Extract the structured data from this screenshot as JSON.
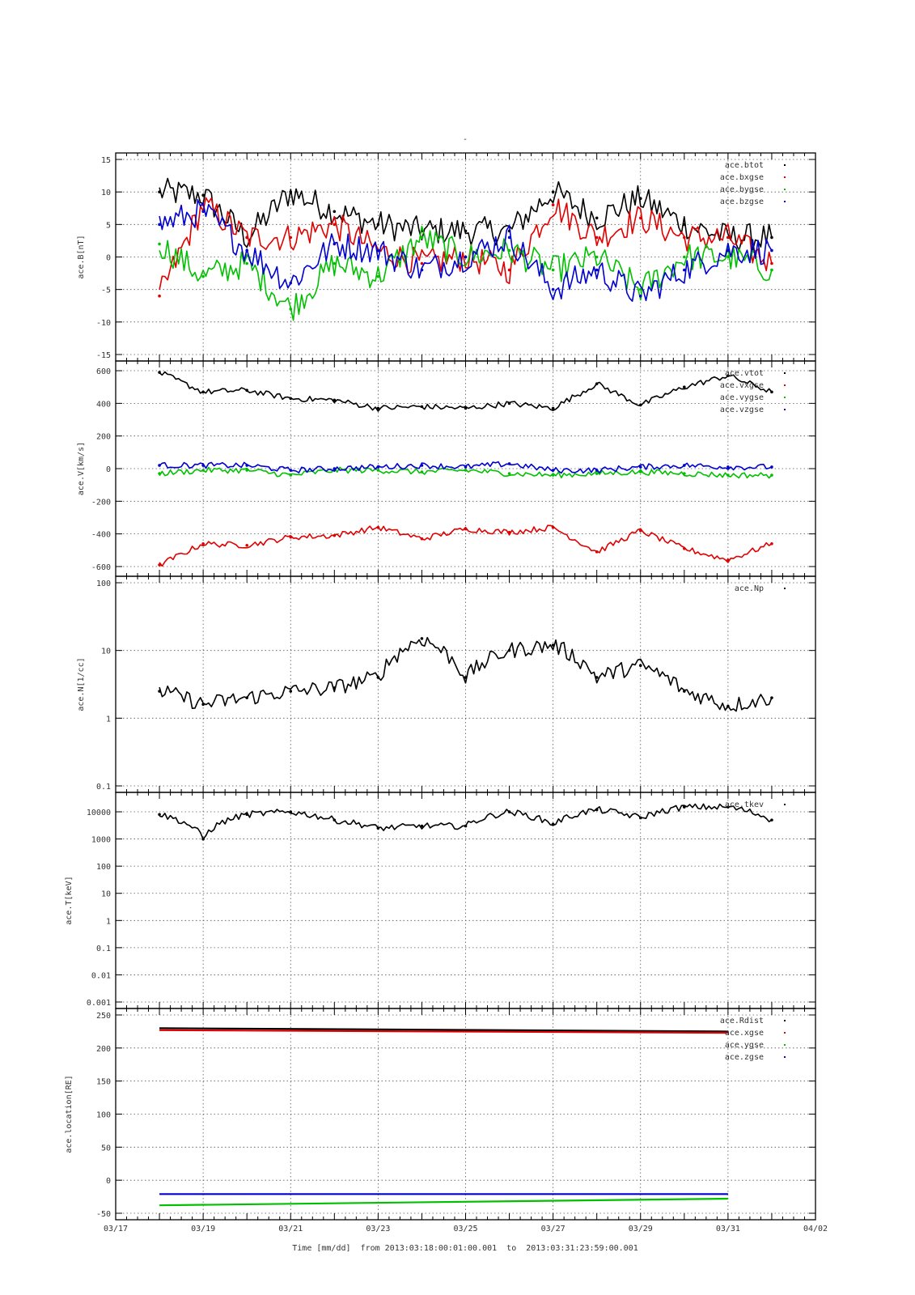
{
  "page": {
    "top_marker": "-",
    "time_axis": {
      "tick_labels": [
        "03/17",
        "03/19",
        "03/21",
        "03/23",
        "03/25",
        "03/27",
        "03/29",
        "03/31",
        "04/02"
      ],
      "title": "Time [mm/dd]  from 2013:03:18:00:01:00.001  to  2013:03:31:23:59:00.001",
      "start": "2013-03-17",
      "end": "2013-04-02",
      "data_start": "2013-03-18T00:01",
      "data_end": "2013-03-31T23:59"
    }
  },
  "colors": {
    "black": "#000000",
    "red": "#e00000",
    "green": "#00c000",
    "blue": "#0000d0"
  },
  "chart_data": [
    {
      "type": "scatter",
      "ylabel": "ace.B[nT]",
      "ylim": [
        -15,
        15
      ],
      "y_ticks": [
        15,
        10,
        5,
        0,
        -5,
        -10,
        -15
      ],
      "grid": true,
      "legend_position": "top-right",
      "x": [
        "03/18",
        "03/19",
        "03/20",
        "03/21",
        "03/22",
        "03/23",
        "03/24",
        "03/25",
        "03/26",
        "03/27",
        "03/28",
        "03/29",
        "03/30",
        "03/31",
        "04/01"
      ],
      "series": [
        {
          "name": "ace.btot",
          "color": "#000000",
          "values": [
            10,
            9.5,
            3,
            10,
            7,
            5,
            4,
            4,
            4,
            10,
            6,
            9,
            5,
            3,
            3
          ]
        },
        {
          "name": "ace.bxgse",
          "color": "#e00000",
          "values": [
            -6,
            8,
            3,
            3,
            5,
            1,
            -1,
            0,
            -2,
            8,
            3,
            6,
            3,
            3,
            -1
          ]
        },
        {
          "name": "ace.bygse",
          "color": "#00c000",
          "values": [
            2,
            -3,
            -1,
            -8,
            -1,
            -3,
            3,
            0,
            1,
            -2,
            0,
            -5,
            0,
            0,
            -2
          ]
        },
        {
          "name": "ace.bzgse",
          "color": "#0000d0",
          "values": [
            5,
            7,
            1,
            -4,
            2,
            1,
            -2,
            0,
            3,
            -5,
            -2,
            -6,
            -2,
            1,
            1
          ]
        }
      ]
    },
    {
      "type": "scatter",
      "ylabel": "ace.V[km/s]",
      "ylim": [
        -620,
        620
      ],
      "y_ticks": [
        600,
        400,
        200,
        0,
        -200,
        -400,
        -600
      ],
      "grid": true,
      "legend_position": "top-right",
      "x": [
        "03/18",
        "03/19",
        "03/20",
        "03/21",
        "03/22",
        "03/23",
        "03/24",
        "03/25",
        "03/26",
        "03/27",
        "03/28",
        "03/29",
        "03/30",
        "03/31",
        "04/01"
      ],
      "series": [
        {
          "name": "ace.vtot",
          "color": "#000000",
          "values": [
            590,
            470,
            480,
            430,
            420,
            370,
            380,
            370,
            400,
            370,
            520,
            390,
            500,
            570,
            470
          ]
        },
        {
          "name": "ace.vxgse",
          "color": "#e00000",
          "values": [
            -590,
            -460,
            -470,
            -420,
            -410,
            -360,
            -430,
            -370,
            -390,
            -360,
            -510,
            -380,
            -490,
            -560,
            -460
          ]
        },
        {
          "name": "ace.vygse",
          "color": "#00c000",
          "values": [
            -30,
            -10,
            -10,
            -40,
            -10,
            -10,
            -20,
            -10,
            -30,
            -40,
            -30,
            -20,
            -30,
            -40,
            -40
          ]
        },
        {
          "name": "ace.vzgse",
          "color": "#0000d0",
          "values": [
            20,
            20,
            20,
            -10,
            0,
            10,
            20,
            10,
            30,
            -10,
            -10,
            10,
            20,
            10,
            10
          ]
        }
      ]
    },
    {
      "type": "scatter",
      "ylabel": "ace.N[1/cc]",
      "yscale": "log",
      "ylim": [
        0.1,
        100
      ],
      "y_ticks": [
        100,
        10,
        1,
        0.1
      ],
      "grid": true,
      "legend_position": "top-right",
      "x": [
        "03/18",
        "03/19",
        "03/20",
        "03/21",
        "03/22",
        "03/23",
        "03/24",
        "03/25",
        "03/26",
        "03/27",
        "03/28",
        "03/29",
        "03/30",
        "03/31",
        "04/01"
      ],
      "series": [
        {
          "name": "ace.Np",
          "color": "#000000",
          "values": [
            2.5,
            1.6,
            2,
            2.5,
            2.8,
            4,
            15,
            4,
            10,
            12,
            4,
            6,
            2.5,
            1.5,
            2
          ]
        }
      ]
    },
    {
      "type": "scatter",
      "ylabel": "ace.T[keV]",
      "yscale": "log",
      "ylim": [
        0.001,
        30000
      ],
      "y_ticks": [
        10000,
        1000,
        100,
        10,
        1,
        0.1,
        0.01,
        0.001
      ],
      "grid": true,
      "legend_position": "top-right",
      "x": [
        "03/18",
        "03/19",
        "03/20",
        "03/21",
        "03/22",
        "03/23",
        "03/24",
        "03/25",
        "03/26",
        "03/27",
        "03/28",
        "03/29",
        "03/30",
        "03/31",
        "04/01"
      ],
      "series": [
        {
          "name": "ace.tkev",
          "color": "#000000",
          "values": [
            8000,
            1000,
            8000,
            10000,
            5000,
            2500,
            3000,
            3000,
            10000,
            3500,
            12000,
            6000,
            15000,
            15000,
            5000
          ]
        }
      ]
    },
    {
      "type": "line",
      "ylabel": "ace.location[RE]",
      "ylim": [
        -50,
        250
      ],
      "y_ticks": [
        250,
        200,
        150,
        100,
        50,
        0,
        -50
      ],
      "grid": true,
      "legend_position": "top-right",
      "x": [
        "03/18",
        "03/31"
      ],
      "series": [
        {
          "name": "ace.Rdist",
          "color": "#000000",
          "values": [
            230,
            225
          ]
        },
        {
          "name": "ace.xgse",
          "color": "#e00000",
          "values": [
            227,
            223
          ]
        },
        {
          "name": "ace.ygse",
          "color": "#00c000",
          "values": [
            -38,
            -28
          ]
        },
        {
          "name": "ace.zgse",
          "color": "#0000d0",
          "values": [
            -21,
            -21
          ]
        }
      ]
    }
  ]
}
